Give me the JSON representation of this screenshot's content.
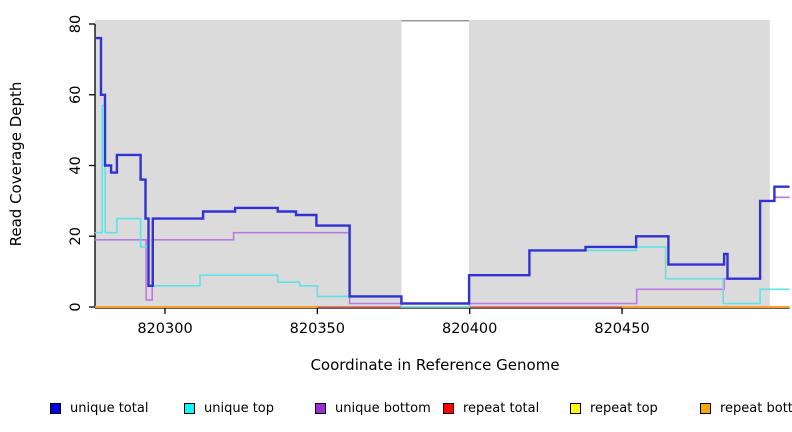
{
  "figure": {
    "x_title": "Coordinate in Reference Genome",
    "y_title": "Read Coverage Depth"
  },
  "legend": {
    "items": [
      {
        "label": "unique total",
        "color": "#0000EE"
      },
      {
        "label": "unique top",
        "color": "#00FFFF"
      },
      {
        "label": "unique bottom",
        "color": "#9932CC"
      },
      {
        "label": "repeat total",
        "color": "#FF0000"
      },
      {
        "label": "repeat top",
        "color": "#FFFF00"
      },
      {
        "label": "repeat bottom",
        "color": "#FFA500"
      }
    ]
  },
  "chart_data": {
    "type": "line",
    "title": "",
    "xlabel": "Coordinate in Reference Genome",
    "ylabel": "Read Coverage Depth",
    "xlim": [
      820277,
      820505
    ],
    "ylim": [
      0,
      80
    ],
    "x_ticks": [
      820300,
      820350,
      820400,
      820450
    ],
    "y_ticks": [
      0,
      20,
      40,
      60,
      80
    ],
    "axis_color": "#000000",
    "grid": false,
    "legend_position": "bottom",
    "shaded_regions": [
      {
        "start": 820277,
        "end": 820377.6,
        "color": "#DBDBDB"
      },
      {
        "start": 820399.8,
        "end": 820498.5,
        "color": "#DBDBDB"
      }
    ],
    "gap_top_border_color": "#999999",
    "series": [
      {
        "name": "repeat top",
        "color": "#FFFF00",
        "line_width": 1.3,
        "step": true,
        "points": [
          [
            820277,
            0
          ]
        ]
      },
      {
        "name": "repeat total",
        "color": "#DF5F6F",
        "line_width": 1.5,
        "step": true,
        "points": [
          [
            820277,
            0
          ]
        ]
      },
      {
        "name": "repeat bottom",
        "color": "#FF9E2A",
        "line_width": 2,
        "step": true,
        "points": [
          [
            820277,
            0
          ],
          [
            820350,
            0
          ],
          null,
          [
            820450,
            0
          ],
          [
            820505,
            0
          ]
        ]
      },
      {
        "name": "unique bottom",
        "color": "#BA7BDF",
        "line_width": 1.6,
        "step": true,
        "points": [
          [
            820277,
            19
          ],
          [
            820293.8,
            2
          ],
          [
            820295.8,
            19
          ],
          [
            820322.5,
            21
          ],
          [
            820360.6,
            1
          ],
          [
            820454.8,
            5
          ],
          [
            820483.5,
            8
          ],
          [
            820495.3,
            30
          ],
          [
            820500,
            31
          ]
        ]
      },
      {
        "name": "unique top",
        "color": "#5FE3E3",
        "line_width": 1.6,
        "step": true,
        "points": [
          [
            820277,
            21
          ],
          [
            820279.4,
            57
          ],
          [
            820280.4,
            21
          ],
          [
            820284.2,
            25
          ],
          [
            820292,
            17
          ],
          [
            820294.6,
            6
          ],
          [
            820311.5,
            9
          ],
          [
            820337,
            7
          ],
          [
            820344.2,
            6
          ],
          [
            820350,
            3
          ],
          [
            820377.6,
            0
          ],
          [
            820399.8,
            9
          ],
          [
            820419.6,
            16
          ],
          [
            820454.6,
            17
          ],
          [
            820464.3,
            8
          ],
          [
            820483.2,
            1
          ],
          [
            820495.3,
            5
          ]
        ]
      },
      {
        "name": "unique total",
        "color": "#3232D2",
        "line_width": 2.4,
        "step": true,
        "points": [
          [
            820277,
            76
          ],
          [
            820279,
            60
          ],
          [
            820280.3,
            40
          ],
          [
            820282.3,
            38
          ],
          [
            820284.2,
            43
          ],
          [
            820292,
            36
          ],
          [
            820293.6,
            25
          ],
          [
            820294.6,
            6
          ],
          [
            820296,
            25
          ],
          [
            820312.5,
            27
          ],
          [
            820323,
            28
          ],
          [
            820337,
            27
          ],
          [
            820343,
            26
          ],
          [
            820349.7,
            23
          ],
          [
            820360.6,
            3
          ],
          [
            820377.6,
            1
          ],
          [
            820399.8,
            9
          ],
          [
            820419.6,
            16
          ],
          [
            820438,
            17
          ],
          [
            820454.6,
            20
          ],
          [
            820465.2,
            12
          ],
          [
            820483.5,
            15
          ],
          [
            820484.6,
            8
          ],
          [
            820495.3,
            30
          ],
          [
            820500,
            34
          ]
        ]
      }
    ]
  }
}
